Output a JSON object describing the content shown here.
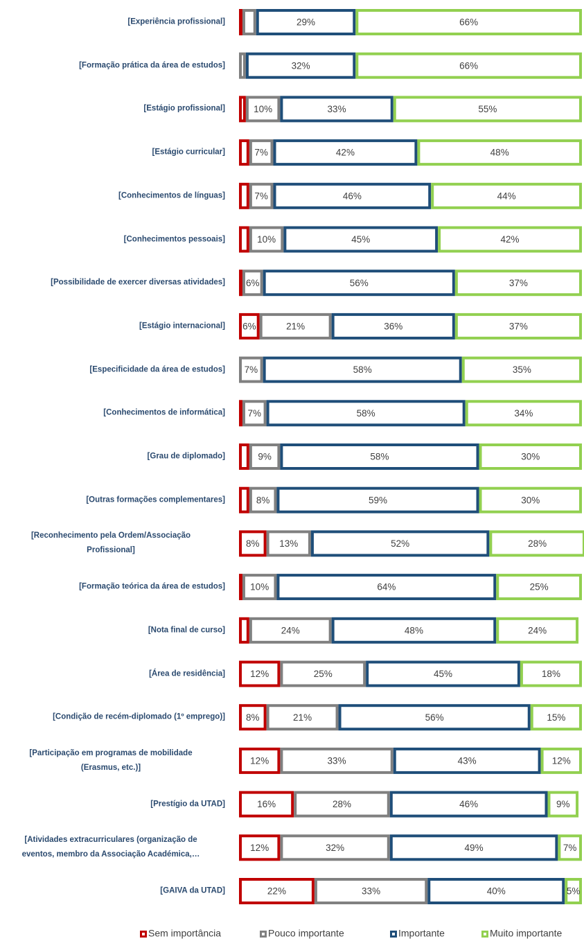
{
  "chart_data": {
    "type": "stacked-bar-horizontal",
    "categories": [
      "[Experiência profissional]",
      "[Formação prática da área de estudos]",
      "[Estágio profissional]",
      "[Estágio curricular]",
      "[Conhecimentos de línguas]",
      "[Conhecimentos pessoais]",
      "[Possibilidade de exercer diversas atividades]",
      "[Estágio internacional]",
      "[Especificidade da área de estudos]",
      "[Conhecimentos de informática]",
      "[Grau de diplomado]",
      "[Outras formações complementares]",
      "[Reconhecimento pela Ordem/Associação\nProfissional]",
      "[Formação teórica da área de estudos]",
      "[Nota final de curso]",
      "[Área de residência]",
      "[Condição de recém-diplomado (1º emprego)]",
      "[Participação em programas de mobilidade\n(Erasmus, etc.)]",
      "[Prestígio da UTAD]",
      "[Atividades extracurriculares (organização de\neventos, membro da Associação Académica,…",
      "[GAIVA da UTAD]"
    ],
    "xlim": [
      0,
      100
    ],
    "series": [
      {
        "name": "Sem importância",
        "color": "#c00000",
        "values": [
          1,
          0,
          2,
          3,
          3,
          3,
          1,
          6,
          0,
          1,
          3,
          3,
          8,
          1,
          3,
          12,
          8,
          12,
          16,
          12,
          22
        ],
        "value_labels": [
          null,
          null,
          null,
          null,
          null,
          null,
          null,
          "6%",
          null,
          null,
          null,
          null,
          "8%",
          null,
          null,
          "12%",
          "8%",
          "12%",
          "16%",
          "12%",
          "22%"
        ]
      },
      {
        "name": "Pouco importante",
        "color": "#808080",
        "values": [
          4,
          2,
          10,
          7,
          7,
          10,
          6,
          21,
          7,
          7,
          9,
          8,
          13,
          10,
          24,
          25,
          21,
          33,
          28,
          32,
          33
        ],
        "value_labels": [
          null,
          null,
          "10%",
          "7%",
          "7%",
          "10%",
          "6%",
          "21%",
          "7%",
          "7%",
          "9%",
          "8%",
          "13%",
          "10%",
          "24%",
          "25%",
          "21%",
          "33%",
          "28%",
          "32%",
          "33%"
        ]
      },
      {
        "name": "Importante",
        "color": "#1f4e79",
        "values": [
          29,
          32,
          33,
          42,
          46,
          45,
          56,
          36,
          58,
          58,
          58,
          59,
          52,
          64,
          48,
          45,
          56,
          43,
          46,
          49,
          40
        ],
        "value_labels": [
          "29%",
          "32%",
          "33%",
          "42%",
          "46%",
          "45%",
          "56%",
          "36%",
          "58%",
          "58%",
          "58%",
          "59%",
          "52%",
          "64%",
          "48%",
          "45%",
          "56%",
          "43%",
          "46%",
          "49%",
          "40%"
        ]
      },
      {
        "name": "Muito importante",
        "color": "#92d050",
        "values": [
          66,
          66,
          55,
          48,
          44,
          42,
          37,
          37,
          35,
          34,
          30,
          30,
          28,
          25,
          24,
          18,
          15,
          12,
          9,
          7,
          5
        ],
        "value_labels": [
          "66%",
          "66%",
          "55%",
          "48%",
          "44%",
          "42%",
          "37%",
          "37%",
          "35%",
          "34%",
          "30%",
          "30%",
          "28%",
          "25%",
          "24%",
          "18%",
          "15%",
          "12%",
          "9%",
          "7%",
          "5%"
        ]
      }
    ]
  }
}
